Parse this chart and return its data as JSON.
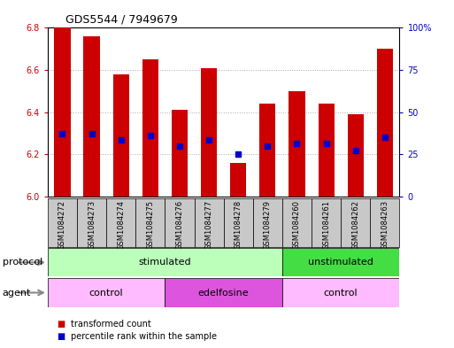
{
  "title": "GDS5544 / 7949679",
  "samples": [
    "GSM1084272",
    "GSM1084273",
    "GSM1084274",
    "GSM1084275",
    "GSM1084276",
    "GSM1084277",
    "GSM1084278",
    "GSM1084279",
    "GSM1084260",
    "GSM1084261",
    "GSM1084262",
    "GSM1084263"
  ],
  "bar_tops": [
    6.8,
    6.76,
    6.58,
    6.65,
    6.41,
    6.61,
    6.16,
    6.44,
    6.5,
    6.44,
    6.39,
    6.7
  ],
  "bar_base": 6.0,
  "blue_dots": [
    6.3,
    6.3,
    6.27,
    6.29,
    6.24,
    6.27,
    6.2,
    6.24,
    6.25,
    6.25,
    6.22,
    6.28
  ],
  "ylim_left": [
    6.0,
    6.8
  ],
  "ylim_right": [
    0,
    100
  ],
  "yticks_left": [
    6.0,
    6.2,
    6.4,
    6.6,
    6.8
  ],
  "yticks_right": [
    0,
    25,
    50,
    75,
    100
  ],
  "bar_color": "#cc0000",
  "dot_color": "#0000cc",
  "grid_color": "#aaaaaa",
  "protocol_groups": [
    {
      "label": "stimulated",
      "start": 0,
      "end": 8,
      "color": "#bbffbb"
    },
    {
      "label": "unstimulated",
      "start": 8,
      "end": 12,
      "color": "#44dd44"
    }
  ],
  "agent_groups": [
    {
      "label": "control",
      "start": 0,
      "end": 4,
      "color": "#ffbbff"
    },
    {
      "label": "edelfosine",
      "start": 4,
      "end": 8,
      "color": "#dd55dd"
    },
    {
      "label": "control",
      "start": 8,
      "end": 12,
      "color": "#ffbbff"
    }
  ],
  "legend_items": [
    {
      "label": "transformed count",
      "color": "#cc0000"
    },
    {
      "label": "percentile rank within the sample",
      "color": "#0000cc"
    }
  ],
  "left_tick_color": "#cc0000",
  "right_tick_color": "#0000cc",
  "bar_width": 0.55,
  "dot_marker_size": 4,
  "tick_label_fontsize": 7,
  "sample_label_fontsize": 6,
  "group_label_fontsize": 8,
  "title_fontsize": 9
}
